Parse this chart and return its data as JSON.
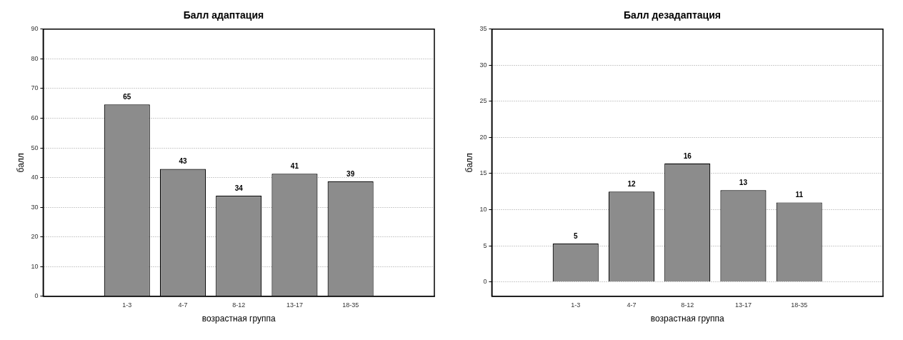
{
  "chart_data": [
    {
      "type": "bar",
      "title": "Балл адаптация",
      "xlabel": "возрастная группа",
      "ylabel": "балл",
      "categories": [
        null,
        "1-3",
        "4-7",
        "8-12",
        "13-17",
        "18-35",
        null
      ],
      "series": [
        {
          "color": "#8c8c8c",
          "values": [
            null,
            64.6,
            42.9,
            33.9,
            41.3,
            38.7,
            null
          ],
          "value_labels": [
            null,
            "65",
            "43",
            "34",
            "41",
            "39",
            null
          ]
        }
      ],
      "ylim": [
        0,
        90
      ],
      "yticks": [
        0,
        10,
        20,
        30,
        40,
        50,
        60,
        70,
        80,
        90
      ],
      "grid": "y",
      "legend": false
    },
    {
      "type": "bar",
      "title": "Балл дезадаптация",
      "xlabel": "возрастная группа",
      "ylabel": "балл",
      "categories": [
        null,
        "1-3",
        "4-7",
        "8-12",
        "13-17",
        "18-35",
        null
      ],
      "series": [
        {
          "color": "#8c8c8c",
          "values": [
            null,
            5.3,
            12.5,
            16.4,
            12.7,
            11.0,
            null
          ],
          "value_labels": [
            null,
            "5",
            "12",
            "16",
            "13",
            "11",
            null
          ]
        }
      ],
      "ylim": [
        -2,
        35
      ],
      "yticks": [
        0,
        5,
        10,
        15,
        20,
        25,
        30,
        35
      ],
      "grid": "y",
      "legend": false
    }
  ]
}
